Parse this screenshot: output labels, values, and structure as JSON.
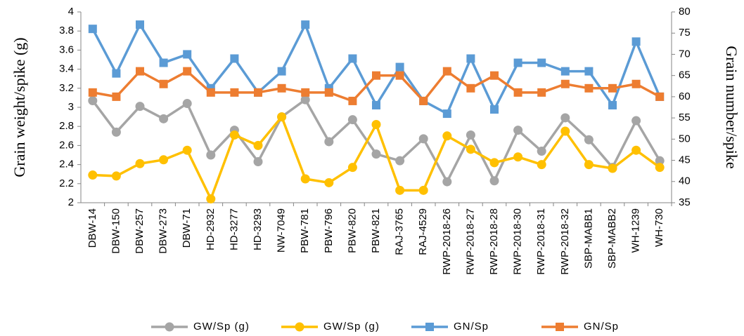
{
  "chart_data": {
    "type": "line",
    "y_label": "Grain weight/spike (g)",
    "y2_label": "Grain number/spike",
    "categories": [
      "DBW-14",
      "DBW-150",
      "DBW-257",
      "DBW-273",
      "DBW-71",
      "HD-2932",
      "HD-3277",
      "HD-3293",
      "NW-7049",
      "PBW-781",
      "PBW-796",
      "PBW-820",
      "PBW-821",
      "RAJ-3765",
      "RAJ-4529",
      "RWP-2018-26",
      "RWP-2018-27",
      "RWP-2018-28",
      "RWP-2018-30",
      "RWP-2018-31",
      "RWP-2018-32",
      "SBP-MABB1",
      "SBP-MABB2",
      "WH-1239",
      "WH-730"
    ],
    "ylim": [
      2,
      4
    ],
    "yticks": [
      2,
      2.2,
      2.4,
      2.6,
      2.8,
      3,
      3.2,
      3.4,
      3.6,
      3.8,
      4
    ],
    "y2lim": [
      35,
      80
    ],
    "y2ticks": [
      35,
      40,
      45,
      50,
      55,
      60,
      65,
      70,
      75,
      80
    ],
    "grid": false,
    "legend": "bottom",
    "series": [
      {
        "name": "GW/Sp (g)",
        "color": "#a5a5a5",
        "marker": "circle",
        "values": [
          3.07,
          2.74,
          3.01,
          2.88,
          3.04,
          2.5,
          2.76,
          2.43,
          2.9,
          3.08,
          2.64,
          2.87,
          2.51,
          2.44,
          2.67,
          2.22,
          2.71,
          2.23,
          2.76,
          2.54,
          2.89,
          2.66,
          2.37,
          2.86,
          2.44
        ]
      },
      {
        "name": "GW/Sp (g)",
        "color": "#ffc000",
        "marker": "circle",
        "values": [
          2.29,
          2.28,
          2.41,
          2.45,
          2.55,
          2.04,
          2.71,
          2.6,
          2.9,
          2.25,
          2.21,
          2.37,
          2.82,
          2.13,
          2.13,
          2.7,
          2.56,
          2.42,
          2.48,
          2.4,
          2.75,
          2.4,
          2.36,
          2.55,
          2.37
        ]
      },
      {
        "name": "GN/Sp",
        "color": "#5b9bd5",
        "marker": "square",
        "axis": "y2",
        "values": [
          76,
          65.5,
          77,
          68,
          70,
          62,
          69,
          61,
          66,
          77,
          62,
          69,
          58,
          67,
          59,
          56,
          69,
          57,
          68,
          68,
          66,
          66,
          58,
          73,
          60
        ]
      },
      {
        "name": "GN/Sp",
        "color": "#ed7d31",
        "marker": "square",
        "axis": "y2",
        "values": [
          61,
          60,
          66,
          63,
          66,
          61,
          61,
          61,
          62,
          61,
          61,
          59,
          65,
          65,
          59,
          66,
          62,
          65,
          61,
          61,
          63,
          62,
          62,
          63,
          60
        ]
      }
    ]
  }
}
